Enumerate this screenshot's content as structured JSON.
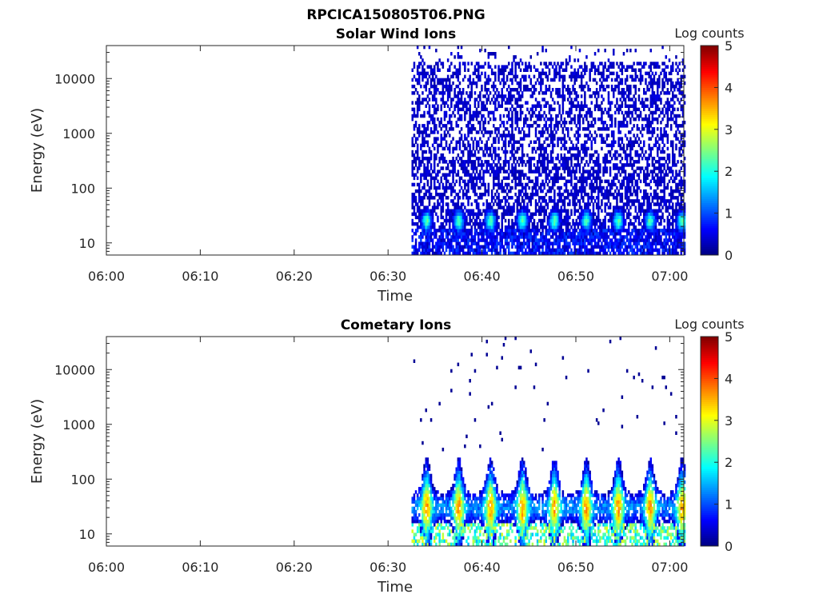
{
  "figure_title": "RPCICA150805T06.PNG",
  "chart_data": [
    {
      "type": "heatmap",
      "title": "Solar Wind Ions",
      "xlabel": "Time",
      "ylabel": "Energy (eV)",
      "x_ticks": [
        "06:00",
        "06:10",
        "06:20",
        "06:30",
        "06:40",
        "06:50",
        "07:00"
      ],
      "xlim_minutes": [
        0,
        61.5
      ],
      "y_scale": "log",
      "y_ticks": [
        "10",
        "100",
        "1000",
        "10000"
      ],
      "ylim": [
        6,
        40000
      ],
      "colorbar": {
        "label": "Log counts",
        "ticks": [
          "0",
          "1",
          "2",
          "3",
          "4",
          "5"
        ],
        "range": [
          0,
          5
        ],
        "colormap": "jet"
      },
      "data_start_minute": 32.5,
      "data_end_minute": 61.5,
      "sweep_period_minutes": 3.4,
      "peak_energy_ev": 25,
      "peak_log_counts": 2.3,
      "background_log_counts": 0.2
    },
    {
      "type": "heatmap",
      "title": "Cometary Ions",
      "xlabel": "Time",
      "ylabel": "Energy (eV)",
      "x_ticks": [
        "06:00",
        "06:10",
        "06:20",
        "06:30",
        "06:40",
        "06:50",
        "07:00"
      ],
      "xlim_minutes": [
        0,
        61.5
      ],
      "y_scale": "log",
      "y_ticks": [
        "10",
        "100",
        "1000",
        "10000"
      ],
      "ylim": [
        6,
        40000
      ],
      "colorbar": {
        "label": "Log counts",
        "ticks": [
          "0",
          "1",
          "2",
          "3",
          "4",
          "5"
        ],
        "range": [
          0,
          5
        ],
        "colormap": "jet"
      },
      "data_start_minute": 32.5,
      "data_end_minute": 61.5,
      "sweep_period_minutes": 3.4,
      "peak_energy_ev": 30,
      "peak_log_counts": 3.6,
      "background_log_counts": 0.1
    }
  ]
}
